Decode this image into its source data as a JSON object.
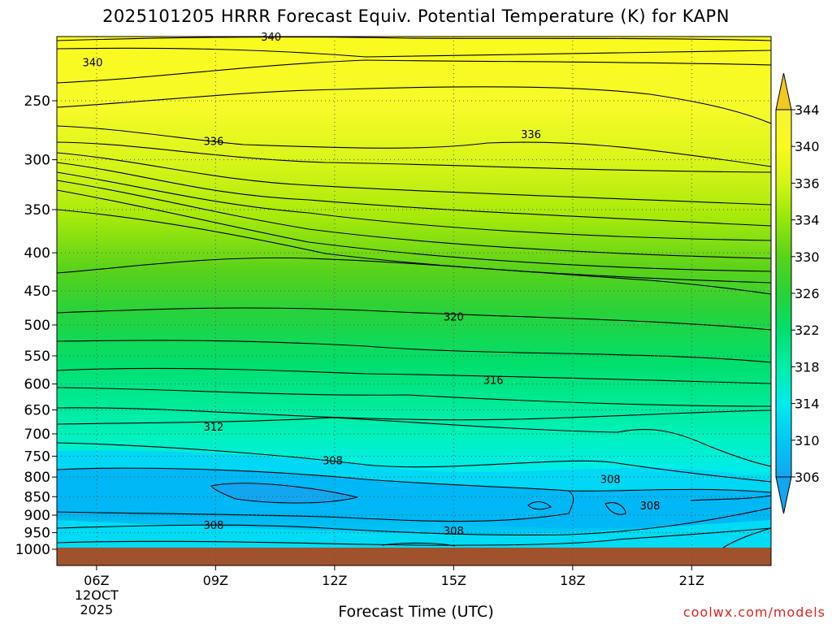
{
  "title": "2025101205 HRRR Forecast Equiv. Potential Temperature (K) for KAPN",
  "credit": "coolwx.com/models",
  "chart_data": {
    "type": "heatmap",
    "title": "2025101205 HRRR Forecast Equiv. Potential Temperature (K) for KAPN",
    "xlabel": "Forecast Time (UTC)",
    "ylabel": "",
    "x_ticks": [
      {
        "label": "06Z",
        "hour": 6
      },
      {
        "label": "09Z",
        "hour": 9
      },
      {
        "label": "12Z",
        "hour": 12
      },
      {
        "label": "15Z",
        "hour": 15
      },
      {
        "label": "18Z",
        "hour": 18
      },
      {
        "label": "21Z",
        "hour": 21
      }
    ],
    "x_date_lines": [
      "12OCT",
      "2025"
    ],
    "xlim_hours": [
      5,
      23
    ],
    "y_ticks": [
      250,
      300,
      350,
      400,
      450,
      500,
      550,
      600,
      650,
      700,
      750,
      800,
      850,
      900,
      950,
      1000
    ],
    "ylim_hpa": [
      1010,
      200
    ],
    "colorbar": {
      "labels": [
        306,
        310,
        314,
        318,
        322,
        326,
        330,
        334,
        336,
        340,
        344
      ],
      "levels": [
        304,
        306,
        308,
        310,
        312,
        314,
        316,
        318,
        320,
        322,
        324,
        326,
        328,
        330,
        332,
        334,
        336,
        338,
        340,
        342,
        344
      ],
      "colors": [
        "#12a6f0",
        "#00c0f5",
        "#00dcf5",
        "#00ecec",
        "#00f5c8",
        "#00eda8",
        "#00e68a",
        "#00df6e",
        "#0ad750",
        "#28d23a",
        "#41d22a",
        "#5ad21a",
        "#78de12",
        "#96e60a",
        "#b4ee0a",
        "#d2f514",
        "#e6fa1e",
        "#f5fa28",
        "#fafa1e",
        "#f0c81e"
      ]
    },
    "grid": true,
    "terrain_color": "#a0522d",
    "contour_labels": [
      {
        "value": "340",
        "hour": 10.4,
        "hpa": 205
      },
      {
        "value": "340",
        "hour": 5.9,
        "hpa": 222
      },
      {
        "value": "336",
        "hour": 8.95,
        "hpa": 283
      },
      {
        "value": "336",
        "hour": 16.95,
        "hpa": 277
      },
      {
        "value": "320",
        "hour": 15.0,
        "hpa": 487
      },
      {
        "value": "316",
        "hour": 16.0,
        "hpa": 592
      },
      {
        "value": "312",
        "hour": 8.95,
        "hpa": 684
      },
      {
        "value": "308",
        "hour": 11.95,
        "hpa": 760
      },
      {
        "value": "308",
        "hour": 18.95,
        "hpa": 805
      },
      {
        "value": "308",
        "hour": 19.95,
        "hpa": 873
      },
      {
        "value": "308",
        "hour": 8.95,
        "hpa": 928
      },
      {
        "value": "308",
        "hour": 15.0,
        "hpa": 944
      }
    ]
  }
}
